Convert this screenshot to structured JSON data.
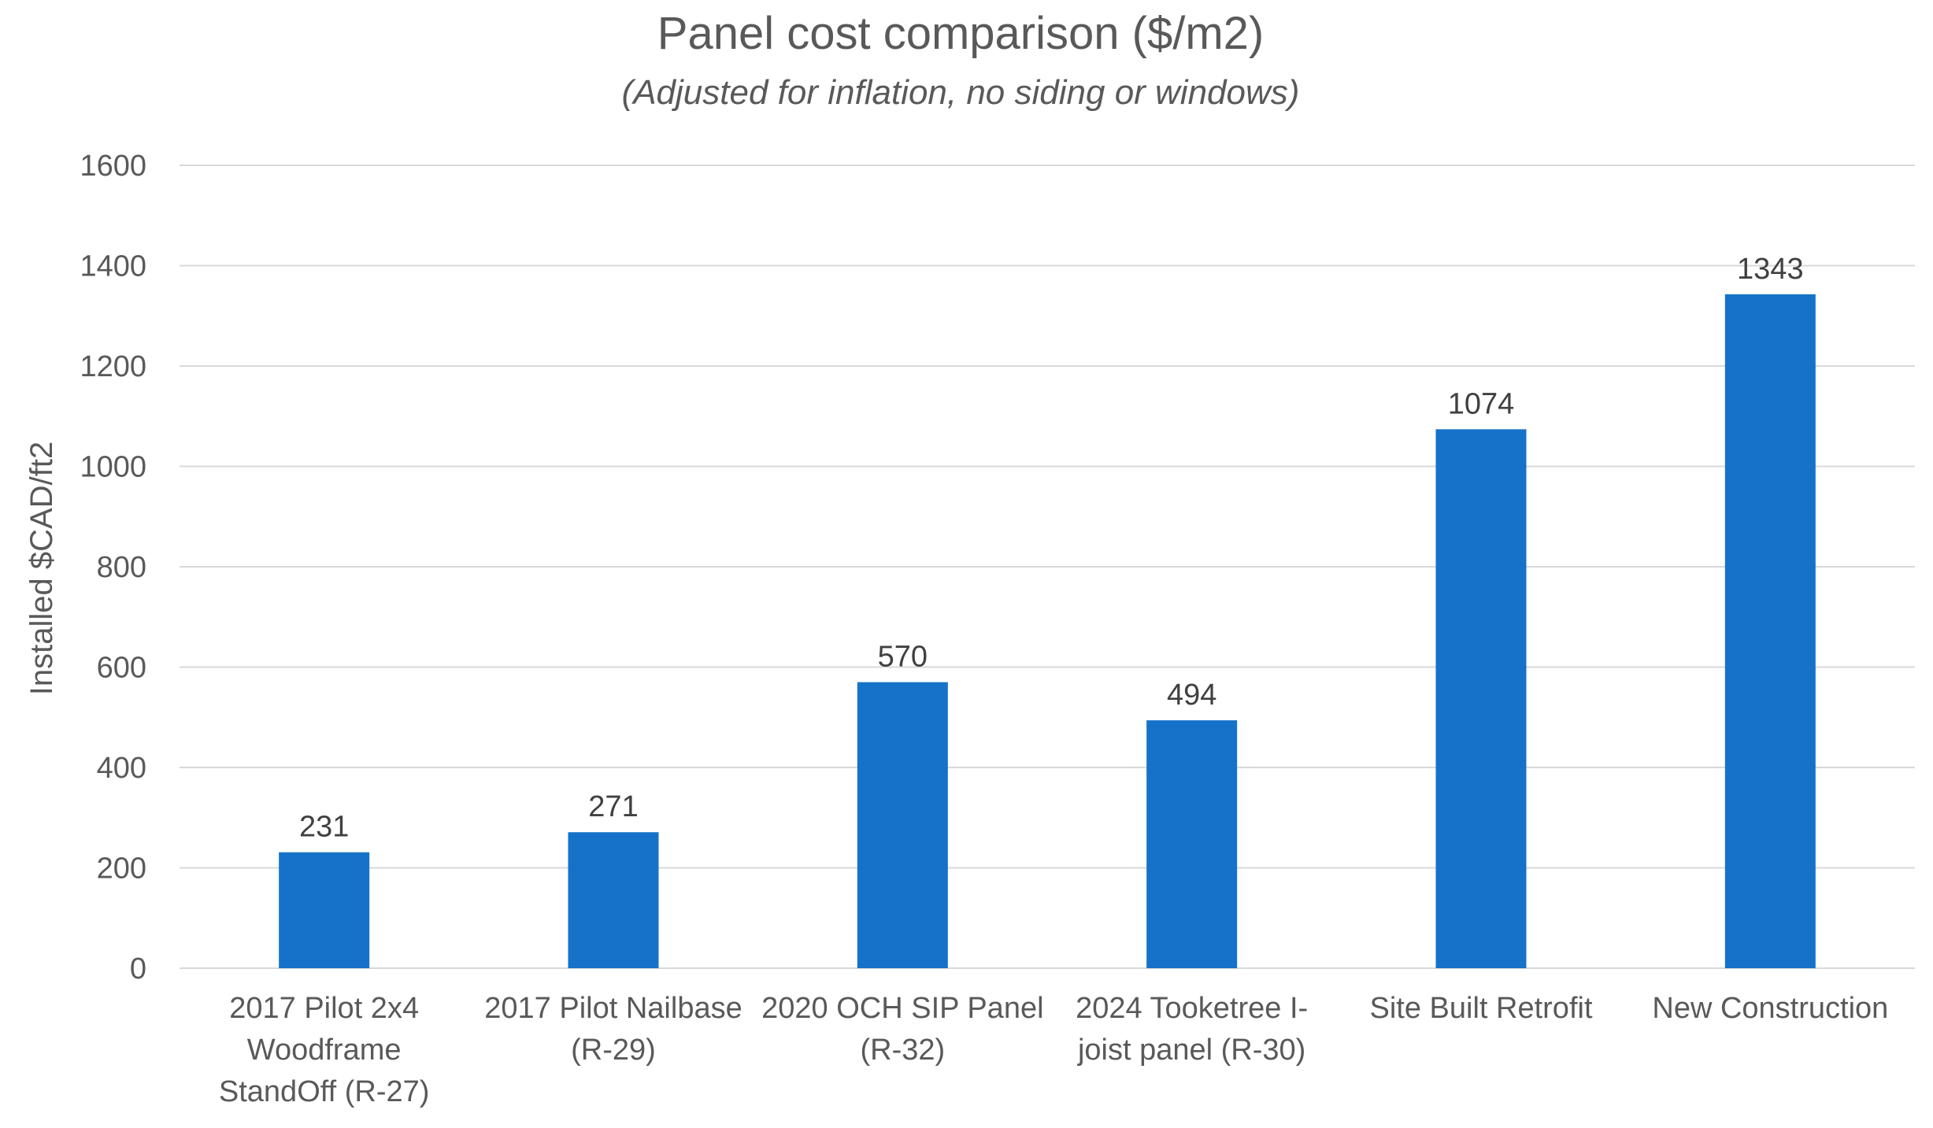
{
  "chart_data": {
    "type": "bar",
    "title": "Panel cost comparison ($/m2)",
    "subtitle": "(Adjusted for inflation, no siding or windows)",
    "ylabel": "Installed $CAD/ft2",
    "xlabel": "",
    "ylim": [
      0,
      1600
    ],
    "yticks": [
      0,
      200,
      400,
      600,
      800,
      1000,
      1200,
      1400,
      1600
    ],
    "grid": true,
    "legend": "none",
    "bar_color": "#1572c8",
    "categories": [
      [
        "2017 Pilot 2x4",
        "Woodframe",
        "StandOff (R-27)"
      ],
      [
        "2017 Pilot Nailbase",
        "(R-29)"
      ],
      [
        "2020 OCH SIP Panel",
        "(R-32)"
      ],
      [
        "2024 Tooketree I-",
        "joist panel (R-30)"
      ],
      [
        "Site Built Retrofit"
      ],
      [
        "New Construction"
      ]
    ],
    "values": [
      231,
      271,
      570,
      494,
      1074,
      1343
    ],
    "data_labels": [
      "231",
      "271",
      "570",
      "494",
      "1074",
      "1343"
    ]
  }
}
